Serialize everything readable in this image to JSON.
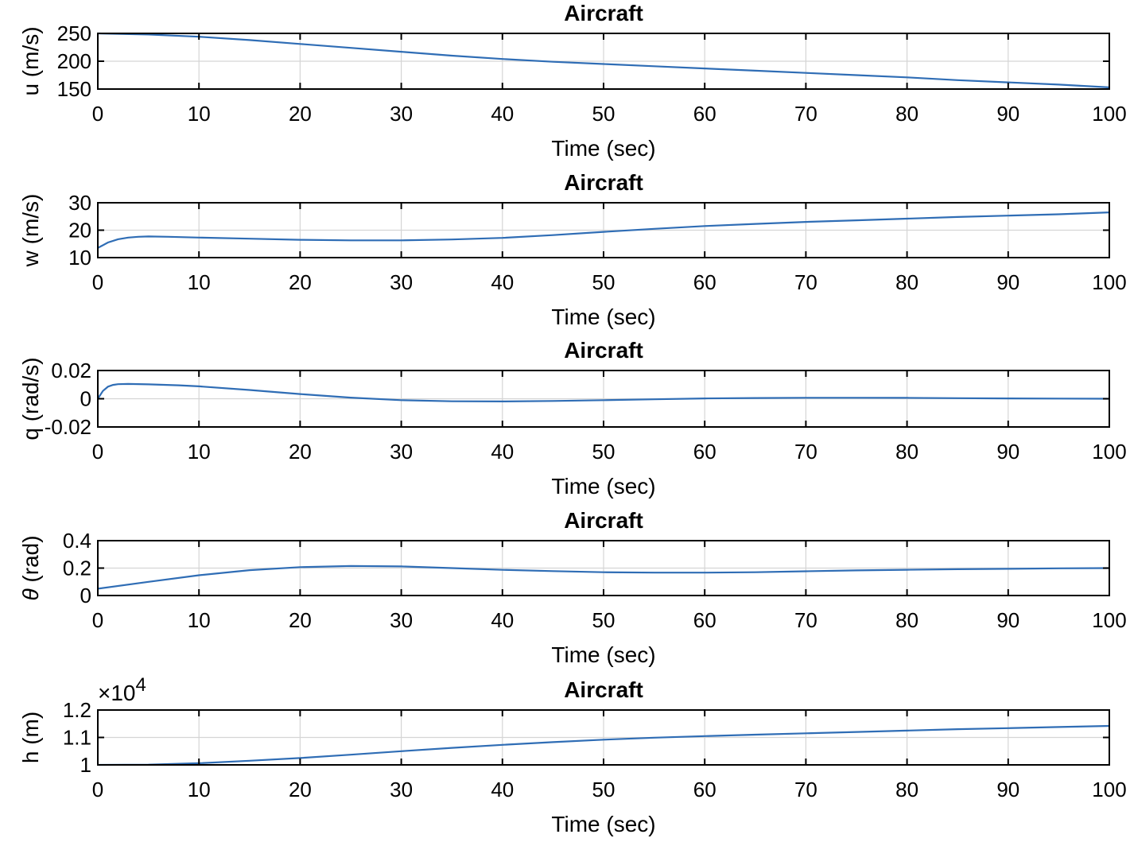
{
  "chart_data": [
    {
      "type": "line",
      "title": "Aircraft",
      "xlabel": "Time (sec)",
      "ylabel": "u (m/s)",
      "xlim": [
        0,
        100
      ],
      "ylim": [
        150,
        250
      ],
      "xticks": [
        "0",
        "10",
        "20",
        "30",
        "40",
        "50",
        "60",
        "70",
        "80",
        "90",
        "100"
      ],
      "yticks": [
        "150",
        "200",
        "250"
      ],
      "grid": true,
      "series": [
        {
          "color": "#2f6db5",
          "x": [
            0,
            5,
            10,
            15,
            20,
            25,
            30,
            35,
            40,
            45,
            50,
            55,
            60,
            65,
            70,
            75,
            80,
            85,
            90,
            95,
            100
          ],
          "y": [
            250,
            248,
            244,
            238,
            231,
            224,
            217,
            210,
            204,
            199,
            195,
            191,
            187,
            183,
            179,
            175,
            171,
            166,
            162,
            158,
            153
          ]
        }
      ]
    },
    {
      "type": "line",
      "title": "Aircraft",
      "xlabel": "Time (sec)",
      "ylabel": "w (m/s)",
      "xlim": [
        0,
        100
      ],
      "ylim": [
        10,
        30
      ],
      "xticks": [
        "0",
        "10",
        "20",
        "30",
        "40",
        "50",
        "60",
        "70",
        "80",
        "90",
        "100"
      ],
      "yticks": [
        "10",
        "20",
        "30"
      ],
      "grid": true,
      "series": [
        {
          "color": "#2f6db5",
          "x": [
            0,
            1,
            2,
            3,
            4,
            5,
            7,
            10,
            15,
            20,
            25,
            30,
            35,
            40,
            45,
            50,
            55,
            60,
            65,
            70,
            75,
            80,
            85,
            90,
            95,
            100
          ],
          "y": [
            13.5,
            15.5,
            16.7,
            17.3,
            17.6,
            17.7,
            17.6,
            17.3,
            16.9,
            16.5,
            16.3,
            16.3,
            16.6,
            17.2,
            18.2,
            19.4,
            20.5,
            21.5,
            22.3,
            23.0,
            23.6,
            24.2,
            24.8,
            25.3,
            25.8,
            26.5
          ]
        }
      ]
    },
    {
      "type": "line",
      "title": "Aircraft",
      "xlabel": "Time (sec)",
      "ylabel": "q (rad/s)",
      "xlim": [
        0,
        100
      ],
      "ylim": [
        -0.02,
        0.02
      ],
      "xticks": [
        "0",
        "10",
        "20",
        "30",
        "40",
        "50",
        "60",
        "70",
        "80",
        "90",
        "100"
      ],
      "yticks": [
        "-0.02",
        "0",
        "0.02"
      ],
      "grid": true,
      "series": [
        {
          "color": "#2f6db5",
          "x": [
            0,
            0.5,
            1,
            1.5,
            2,
            3,
            5,
            8,
            10,
            15,
            20,
            25,
            30,
            35,
            40,
            45,
            50,
            55,
            60,
            65,
            70,
            75,
            80,
            85,
            90,
            95,
            100
          ],
          "y": [
            0,
            0.0055,
            0.0085,
            0.0098,
            0.0103,
            0.0105,
            0.0102,
            0.0095,
            0.0088,
            0.0062,
            0.0033,
            0.0008,
            -0.001,
            -0.0018,
            -0.0019,
            -0.0016,
            -0.001,
            -0.0004,
            0.0002,
            0.0005,
            0.0007,
            0.0007,
            0.0006,
            0.0004,
            0.0002,
            0.0001,
            0
          ]
        }
      ]
    },
    {
      "type": "line",
      "title": "Aircraft",
      "xlabel": "Time (sec)",
      "ylabel": "θ (rad)",
      "ylabel_symbol": "θ",
      "ylabel_rest": " (rad)",
      "xlim": [
        0,
        100
      ],
      "ylim": [
        0,
        0.4
      ],
      "xticks": [
        "0",
        "10",
        "20",
        "30",
        "40",
        "50",
        "60",
        "70",
        "80",
        "90",
        "100"
      ],
      "yticks": [
        "0",
        "0.2",
        "0.4"
      ],
      "grid": true,
      "series": [
        {
          "color": "#2f6db5",
          "x": [
            0,
            5,
            10,
            15,
            20,
            25,
            30,
            35,
            40,
            45,
            50,
            55,
            60,
            65,
            70,
            75,
            80,
            85,
            90,
            95,
            100
          ],
          "y": [
            0.05,
            0.1,
            0.148,
            0.185,
            0.207,
            0.215,
            0.212,
            0.2,
            0.187,
            0.178,
            0.17,
            0.167,
            0.167,
            0.17,
            0.177,
            0.183,
            0.188,
            0.192,
            0.195,
            0.198,
            0.2
          ]
        }
      ]
    },
    {
      "type": "line",
      "title": "Aircraft",
      "xlabel": "Time (sec)",
      "ylabel": "h (m)",
      "xlim": [
        0,
        100
      ],
      "ylim": [
        1,
        1.2
      ],
      "xticks": [
        "0",
        "10",
        "20",
        "30",
        "40",
        "50",
        "60",
        "70",
        "80",
        "90",
        "100"
      ],
      "yticks": [
        "1",
        "1.1",
        "1.2"
      ],
      "exponent_base": "×10",
      "exponent_power": "4",
      "grid": true,
      "series": [
        {
          "color": "#2f6db5",
          "x": [
            0,
            5,
            10,
            15,
            20,
            25,
            30,
            35,
            40,
            45,
            50,
            55,
            60,
            65,
            70,
            75,
            80,
            85,
            90,
            95,
            100
          ],
          "y": [
            1.0,
            1.001,
            1.006,
            1.015,
            1.025,
            1.037,
            1.05,
            1.062,
            1.073,
            1.083,
            1.092,
            1.099,
            1.105,
            1.11,
            1.115,
            1.12,
            1.125,
            1.13,
            1.134,
            1.138,
            1.142
          ]
        }
      ]
    }
  ]
}
